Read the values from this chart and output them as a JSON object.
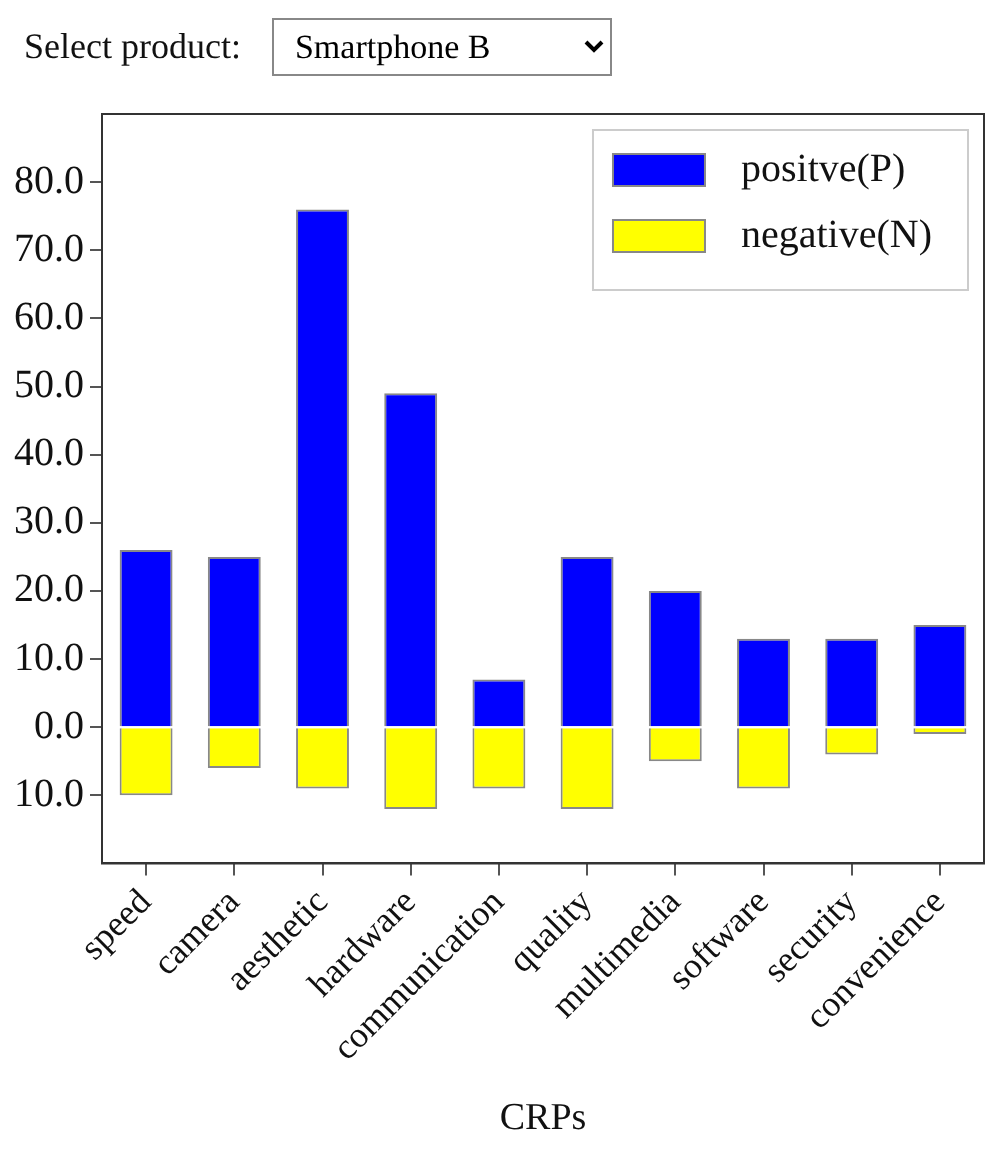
{
  "chart_data": {
    "type": "bar",
    "xlabel": "CRPs",
    "annotations": [
      "Select product:",
      "Smartphone B"
    ],
    "categories": [
      "speed",
      "camera",
      "aesthetic",
      "hardware",
      "communication",
      "quality",
      "multimedia",
      "software",
      "security",
      "convenience"
    ],
    "series": [
      {
        "name": "positve(P)",
        "color": "#0000ff",
        "values": [
          26,
          25,
          76,
          49,
          7,
          25,
          20,
          13,
          13,
          15
        ]
      },
      {
        "name": "negative(N)",
        "color": "#ffff00",
        "values": [
          -10,
          -6,
          -9,
          -12,
          -9,
          -12,
          -5,
          -9,
          -4,
          -1
        ]
      }
    ],
    "stacked": true,
    "ylim": [
      -20,
      90
    ],
    "yticks": [
      {
        "value": -10,
        "label": "10.0"
      },
      {
        "value": 0,
        "label": "0.0"
      },
      {
        "value": 10,
        "label": "10.0"
      },
      {
        "value": 20,
        "label": "20.0"
      },
      {
        "value": 30,
        "label": "30.0"
      },
      {
        "value": 40,
        "label": "40.0"
      },
      {
        "value": 50,
        "label": "50.0"
      },
      {
        "value": 60,
        "label": "60.0"
      },
      {
        "value": 70,
        "label": "70.0"
      },
      {
        "value": 80,
        "label": "80.0"
      }
    ],
    "grid": false,
    "legend": "top right"
  }
}
